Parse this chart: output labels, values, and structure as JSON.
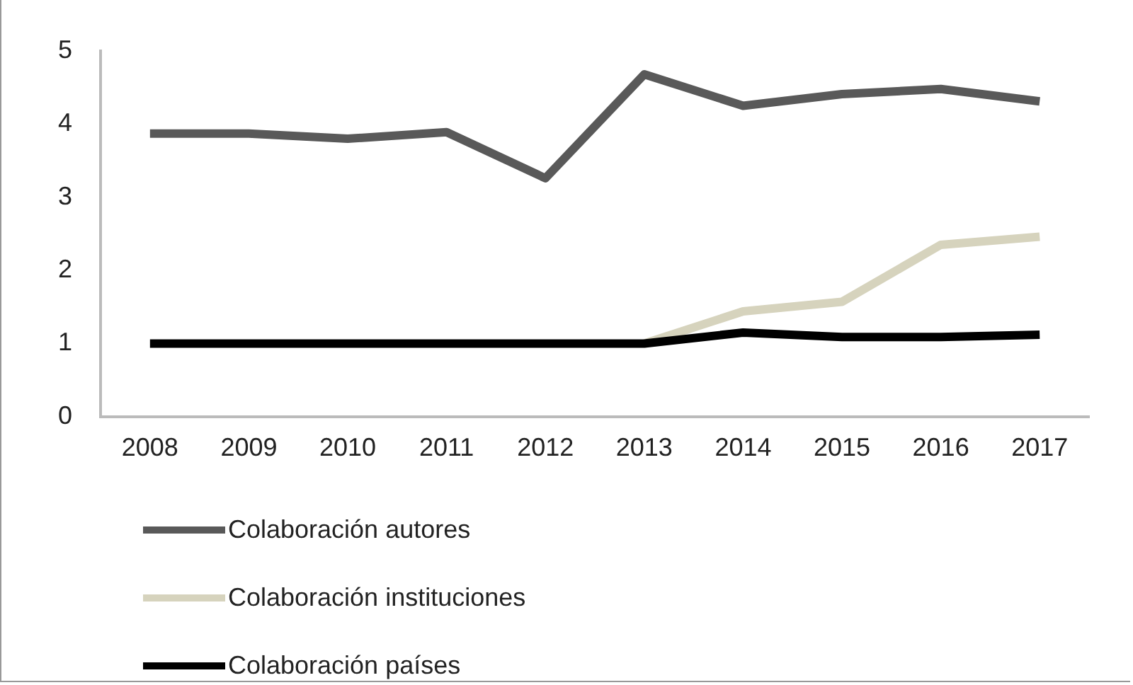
{
  "chart_data": {
    "type": "line",
    "categories": [
      "2008",
      "2009",
      "2010",
      "2011",
      "2012",
      "2013",
      "2014",
      "2015",
      "2016",
      "2017"
    ],
    "series": [
      {
        "name": "Colaboración autores",
        "color": "#595959",
        "values": [
          3.87,
          3.87,
          3.8,
          3.89,
          3.26,
          4.68,
          4.25,
          4.41,
          4.48,
          4.31
        ]
      },
      {
        "name": "Colaboración instituciones",
        "color": "#d6d3bd",
        "values": [
          null,
          null,
          null,
          null,
          null,
          1,
          1.44,
          1.57,
          2.35,
          2.46
        ]
      },
      {
        "name": "Colaboración países",
        "color": "#000000",
        "values": [
          1,
          1,
          1,
          1,
          1,
          1,
          1.15,
          1.09,
          1.09,
          1.12
        ]
      }
    ],
    "ylim": [
      0,
      5
    ],
    "yticks": [
      0,
      1,
      2,
      3,
      4,
      5
    ],
    "grid": false,
    "legend": "bottom",
    "marker": "none",
    "line_style": "solid"
  }
}
